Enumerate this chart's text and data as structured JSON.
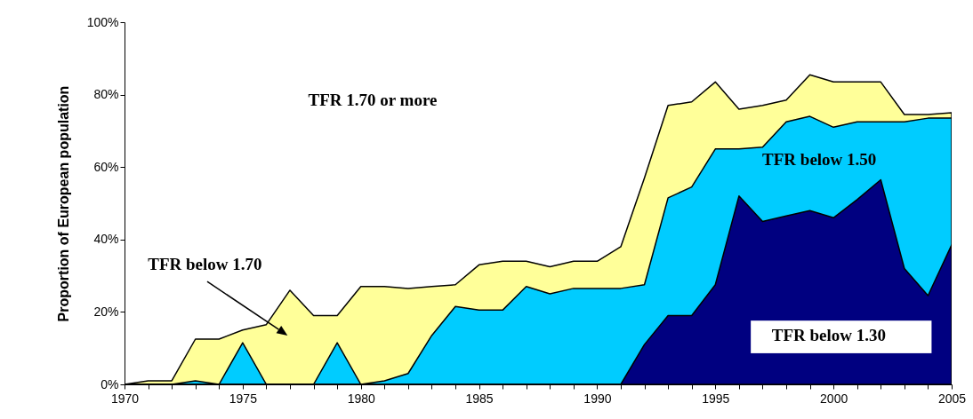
{
  "chart_data": {
    "type": "area",
    "ylabel": "Proportion of European population",
    "x": [
      1970,
      1971,
      1972,
      1973,
      1974,
      1975,
      1976,
      1977,
      1978,
      1979,
      1980,
      1981,
      1982,
      1983,
      1984,
      1985,
      1986,
      1987,
      1988,
      1989,
      1990,
      1991,
      1992,
      1993,
      1994,
      1995,
      1996,
      1997,
      1998,
      1999,
      2000,
      2001,
      2002,
      2003,
      2004,
      2005
    ],
    "series": [
      {
        "name": "TFR below 1.70",
        "color": "#ffff99",
        "values": [
          0,
          1,
          1,
          12.5,
          12.5,
          15,
          16.5,
          26,
          19,
          19,
          27,
          27,
          26.5,
          27,
          27.5,
          33,
          34,
          34,
          32.5,
          34,
          34,
          38,
          57,
          77,
          78,
          83.5,
          76,
          77,
          78.5,
          85.5,
          83.5,
          83.5,
          83.5,
          74.5,
          74.5,
          75
        ]
      },
      {
        "name": "TFR below 1.50",
        "color": "#00ccff",
        "values": [
          0,
          0,
          0,
          1,
          0,
          11.5,
          0,
          0,
          0,
          11.5,
          0,
          1,
          3,
          13.5,
          21.5,
          20.5,
          20.5,
          27,
          25,
          26.5,
          26.5,
          26.5,
          27.5,
          51.5,
          54.5,
          65,
          65,
          65.5,
          72.5,
          74,
          71,
          72.5,
          72.5,
          72.5,
          73.5,
          73.5
        ]
      },
      {
        "name": "TFR below 1.30",
        "color": "#000080",
        "values": [
          0,
          0,
          0,
          0,
          0,
          0,
          0,
          0,
          0,
          0,
          0,
          0,
          0,
          0,
          0,
          0,
          0,
          0,
          0,
          0,
          0,
          0,
          11,
          19,
          19,
          27.5,
          52,
          45,
          46.5,
          48,
          46,
          51,
          56.5,
          32,
          24.5,
          38.5
        ]
      }
    ],
    "annotations": [
      "TFR 1.70 or more"
    ],
    "xlim": [
      1970,
      2005
    ],
    "xticks": [
      1970,
      {
        "value": 1971,
        "label": null
      },
      {
        "value": 1972,
        "label": null
      },
      {
        "value": 1973,
        "label": null
      },
      {
        "value": 1974,
        "label": null
      },
      1975,
      {
        "value": 1976,
        "label": null
      },
      {
        "value": 1977,
        "label": null
      },
      {
        "value": 1978,
        "label": null
      },
      {
        "value": 1979,
        "label": null
      },
      1980,
      {
        "value": 1981,
        "label": null
      },
      {
        "value": 1982,
        "label": null
      },
      {
        "value": 1983,
        "label": null
      },
      {
        "value": 1984,
        "label": null
      },
      1985,
      {
        "value": 1986,
        "label": null
      },
      {
        "value": 1987,
        "label": null
      },
      {
        "value": 1988,
        "label": null
      },
      {
        "value": 1989,
        "label": null
      },
      1990,
      {
        "value": 1991,
        "label": null
      },
      {
        "value": 1992,
        "label": null
      },
      {
        "value": 1993,
        "label": null
      },
      {
        "value": 1994,
        "label": null
      },
      1995,
      {
        "value": 1996,
        "label": null
      },
      {
        "value": 1997,
        "label": null
      },
      {
        "value": 1998,
        "label": null
      },
      {
        "value": 1999,
        "label": null
      },
      2000,
      {
        "value": 2001,
        "label": null
      },
      {
        "value": 2002,
        "label": null
      },
      {
        "value": 2003,
        "label": null
      },
      {
        "value": 2004,
        "label": null
      },
      2005
    ],
    "ylim": [
      0,
      100
    ],
    "yticks": [
      {
        "value": 0,
        "label": "0%"
      },
      {
        "value": 20,
        "label": "20%"
      },
      {
        "value": 40,
        "label": "40%"
      },
      {
        "value": 60,
        "label": "60%"
      },
      {
        "value": 80,
        "label": "80%"
      },
      {
        "value": 100,
        "label": "100%"
      }
    ],
    "grid": false
  }
}
